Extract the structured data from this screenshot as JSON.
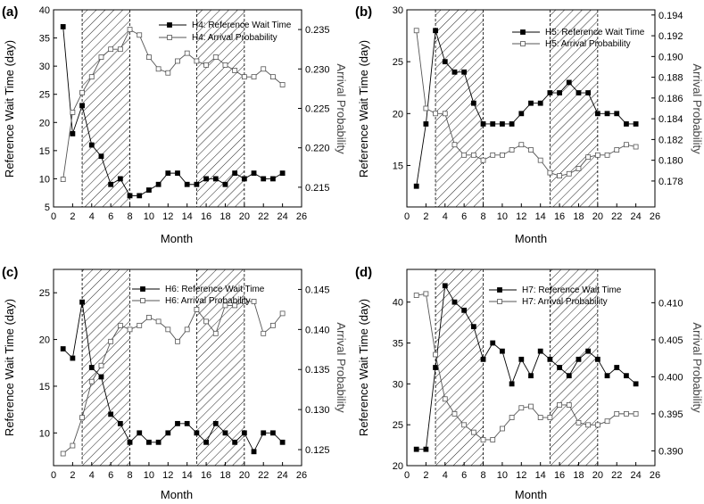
{
  "chart_data": [
    {
      "type": "line",
      "panel": "(a)",
      "xlabel": "Month",
      "ylabel": "Reference Wait Time (day)",
      "y2label": "Arrival Probability",
      "xlim": [
        0,
        26
      ],
      "xticks": [
        0,
        2,
        4,
        6,
        8,
        10,
        12,
        14,
        16,
        18,
        20,
        22,
        24,
        26
      ],
      "ylim": [
        5,
        40
      ],
      "yticks": [
        5,
        10,
        15,
        20,
        25,
        30,
        35,
        40
      ],
      "y2lim": [
        0.2125,
        0.2375
      ],
      "y2ticks": [
        0.215,
        0.22,
        0.225,
        0.23,
        0.235
      ],
      "shaded": [
        [
          3,
          8
        ],
        [
          15,
          20
        ]
      ],
      "legend_position": "top-right",
      "series": [
        {
          "name": "H4: Reference Wait Time",
          "axis": "left",
          "marker": "filled-square",
          "x": [
            1,
            2,
            3,
            4,
            5,
            6,
            7,
            8,
            9,
            10,
            11,
            12,
            13,
            14,
            15,
            16,
            17,
            18,
            19,
            20,
            21,
            22,
            23,
            24
          ],
          "values": [
            37,
            18,
            23,
            16,
            14,
            9,
            10,
            7,
            7,
            8,
            9,
            11,
            11,
            9,
            9,
            10,
            10,
            9,
            11,
            10,
            11,
            10,
            10,
            11
          ]
        },
        {
          "name": "H4: Arrival Probability",
          "axis": "right",
          "marker": "open-square",
          "x": [
            1,
            2,
            3,
            4,
            5,
            6,
            7,
            8,
            9,
            10,
            11,
            12,
            13,
            14,
            15,
            16,
            17,
            18,
            19,
            20,
            21,
            22,
            23,
            24
          ],
          "values": [
            0.216,
            0.2245,
            0.227,
            0.229,
            0.2315,
            0.2325,
            0.2325,
            0.235,
            0.2343,
            0.2315,
            0.23,
            0.2295,
            0.231,
            0.232,
            0.231,
            0.2305,
            0.2315,
            0.2305,
            0.2298,
            0.229,
            0.229,
            0.23,
            0.229,
            0.228
          ]
        }
      ]
    },
    {
      "type": "line",
      "panel": "(b)",
      "xlabel": "Month",
      "ylabel": "Reference Wait Time (day)",
      "y2label": "Arrival Probability",
      "xlim": [
        0,
        26
      ],
      "xticks": [
        0,
        2,
        4,
        6,
        8,
        10,
        12,
        14,
        16,
        18,
        20,
        22,
        24,
        26
      ],
      "ylim": [
        11,
        30
      ],
      "yticks": [
        15,
        20,
        25,
        30
      ],
      "y2lim": [
        0.1755,
        0.1945
      ],
      "y2ticks": [
        0.178,
        0.18,
        0.182,
        0.184,
        0.186,
        0.188,
        0.19,
        0.192,
        0.194
      ],
      "shaded": [
        [
          3,
          8
        ],
        [
          15,
          20
        ]
      ],
      "legend_position": "top-right",
      "series": [
        {
          "name": "H5: Reference Wait Time",
          "axis": "left",
          "marker": "filled-square",
          "x": [
            1,
            2,
            3,
            4,
            5,
            6,
            7,
            8,
            9,
            10,
            11,
            12,
            13,
            14,
            15,
            16,
            17,
            18,
            19,
            20,
            21,
            22,
            23,
            24
          ],
          "values": [
            13,
            19,
            28,
            25,
            24,
            24,
            21,
            19,
            19,
            19,
            19,
            20,
            21,
            21,
            22,
            22,
            23,
            22,
            22,
            20,
            20,
            20,
            19,
            19
          ]
        },
        {
          "name": "H5: Arrival Probability",
          "axis": "right",
          "marker": "open-square",
          "x": [
            1,
            2,
            3,
            4,
            5,
            6,
            7,
            8,
            9,
            10,
            11,
            12,
            13,
            14,
            15,
            16,
            17,
            18,
            19,
            20,
            21,
            22,
            23,
            24
          ],
          "values": [
            0.1925,
            0.185,
            0.1845,
            0.1845,
            0.1815,
            0.1805,
            0.1805,
            0.18,
            0.1805,
            0.1805,
            0.181,
            0.1815,
            0.181,
            0.18,
            0.1788,
            0.1785,
            0.1787,
            0.1792,
            0.1803,
            0.1805,
            0.1805,
            0.181,
            0.1815,
            0.1813
          ]
        }
      ]
    },
    {
      "type": "line",
      "panel": "(c)",
      "xlabel": "Month",
      "ylabel": "Reference Wait Time (day)",
      "y2label": "Arrival Probability",
      "xlim": [
        0,
        26
      ],
      "xticks": [
        0,
        2,
        4,
        6,
        8,
        10,
        12,
        14,
        16,
        18,
        20,
        22,
        24,
        26
      ],
      "ylim": [
        6.5,
        27.5
      ],
      "yticks": [
        10,
        15,
        20,
        25
      ],
      "y2lim": [
        0.123,
        0.1475
      ],
      "y2ticks": [
        0.125,
        0.13,
        0.135,
        0.14,
        0.145
      ],
      "shaded": [
        [
          3,
          8
        ],
        [
          15,
          20
        ]
      ],
      "legend_position": "top-right",
      "series": [
        {
          "name": "H6: Reference Wait Time",
          "axis": "left",
          "marker": "filled-square",
          "x": [
            1,
            2,
            3,
            4,
            5,
            6,
            7,
            8,
            9,
            10,
            11,
            12,
            13,
            14,
            15,
            16,
            17,
            18,
            19,
            20,
            21,
            22,
            23,
            24
          ],
          "values": [
            19,
            18,
            24,
            17,
            16,
            12,
            11,
            9,
            10,
            9,
            9,
            10,
            11,
            11,
            10,
            9,
            11,
            10,
            9,
            10,
            8,
            10,
            10,
            9
          ]
        },
        {
          "name": "H6: Arrival Probability",
          "axis": "right",
          "marker": "open-square",
          "x": [
            1,
            2,
            3,
            4,
            5,
            6,
            7,
            8,
            9,
            10,
            11,
            12,
            13,
            14,
            15,
            16,
            17,
            18,
            19,
            20,
            21,
            22,
            23,
            24
          ],
          "values": [
            0.1245,
            0.1255,
            0.129,
            0.1335,
            0.1355,
            0.1385,
            0.1405,
            0.14,
            0.1405,
            0.1415,
            0.141,
            0.14,
            0.1385,
            0.14,
            0.1425,
            0.141,
            0.1395,
            0.143,
            0.143,
            0.1435,
            0.1435,
            0.1395,
            0.1405,
            0.142
          ]
        }
      ]
    },
    {
      "type": "line",
      "panel": "(d)",
      "xlabel": "Month",
      "ylabel": "Reference Wait Time (day)",
      "y2label": "Arrival Probability",
      "xlim": [
        0,
        26
      ],
      "xticks": [
        0,
        2,
        4,
        6,
        8,
        10,
        12,
        14,
        16,
        18,
        20,
        22,
        24,
        26
      ],
      "ylim": [
        20,
        44
      ],
      "yticks": [
        20,
        25,
        30,
        35,
        40
      ],
      "y2lim": [
        0.388,
        0.4145
      ],
      "y2ticks": [
        0.39,
        0.395,
        0.4,
        0.405,
        0.41
      ],
      "shaded": [
        [
          3,
          8
        ],
        [
          15,
          20
        ]
      ],
      "legend_position": "top-right",
      "series": [
        {
          "name": "H7: Reference Wait Time",
          "axis": "left",
          "marker": "filled-square",
          "x": [
            1,
            2,
            3,
            4,
            5,
            6,
            7,
            8,
            9,
            10,
            11,
            12,
            13,
            14,
            15,
            16,
            17,
            18,
            19,
            20,
            21,
            22,
            23,
            24
          ],
          "values": [
            22,
            22,
            32,
            42,
            40,
            39,
            37,
            33,
            35,
            34,
            30,
            33,
            31,
            34,
            33,
            32,
            31,
            33,
            34,
            33,
            31,
            32,
            31,
            30
          ]
        },
        {
          "name": "H7: Arrival Probability",
          "axis": "right",
          "marker": "open-square",
          "x": [
            1,
            2,
            3,
            4,
            5,
            6,
            7,
            8,
            9,
            10,
            11,
            12,
            13,
            14,
            15,
            16,
            17,
            18,
            19,
            20,
            21,
            22,
            23,
            24
          ],
          "values": [
            0.411,
            0.4112,
            0.403,
            0.397,
            0.395,
            0.3935,
            0.3925,
            0.3915,
            0.3915,
            0.393,
            0.3945,
            0.3958,
            0.396,
            0.3945,
            0.3945,
            0.3962,
            0.3962,
            0.3938,
            0.3935,
            0.3935,
            0.394,
            0.395,
            0.395,
            0.395
          ]
        }
      ]
    }
  ]
}
